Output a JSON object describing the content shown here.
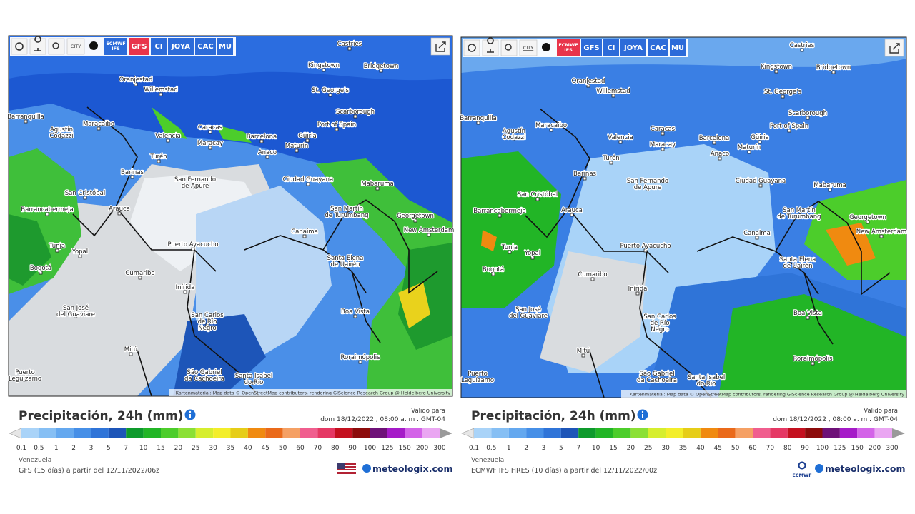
{
  "panels": [
    {
      "toolbar": {
        "city": "CITY",
        "models": [
          [
            "ECMWF",
            "IFS"
          ],
          [
            "GFS"
          ],
          [
            "CI"
          ],
          [
            "JOYA"
          ],
          [
            "CAC"
          ],
          [
            "MU"
          ]
        ],
        "active": 1
      },
      "cities": [
        [
          "Castries"
        ],
        [
          "Kingstown"
        ],
        [
          "Bridgetown"
        ],
        [
          "Oranjestad"
        ],
        [
          "Willemstad"
        ],
        [
          "St. George's"
        ],
        [
          "Scarborough"
        ],
        [
          "Barranquilla"
        ],
        [
          "Maracaibo"
        ],
        [
          "Port of Spain"
        ],
        [
          "Agustín",
          "Codazzi"
        ],
        [
          "Caracas"
        ],
        [
          "Valencia"
        ],
        [
          "Maracay"
        ],
        [
          "Barcelona"
        ],
        [
          "Güiria"
        ],
        [
          "Maturín"
        ],
        [
          "Anaco"
        ],
        [
          "Turén"
        ],
        [
          "Barinas"
        ],
        [
          "Ciudad Guayana"
        ],
        [
          "Mabaruma"
        ],
        [
          "San Fernando",
          "de Apure"
        ],
        [
          "San Cristóbal"
        ],
        [
          "Arauca"
        ],
        [
          "Barrancabermeja"
        ],
        [
          "San Martín",
          "de Turumbang"
        ],
        [
          "Georgetown"
        ],
        [
          "New Amsterdam"
        ],
        [
          "Canaima"
        ],
        [
          "Tunja"
        ],
        [
          "Yopal"
        ],
        [
          "Puerto Ayacucho"
        ],
        [
          "Bogotá"
        ],
        [
          "Santa Elena",
          "de Uairén"
        ],
        [
          "Cumaribo"
        ],
        [
          "Inírida"
        ],
        [
          "Boa Vista"
        ],
        [
          "San José",
          "del Guaviare"
        ],
        [
          "San Carlos",
          "de Río",
          "Negro"
        ],
        [
          "Roraimópolis"
        ],
        [
          "Mitú"
        ],
        [
          "São Gabriel",
          "da Cachoeira"
        ],
        [
          "Santa Isabel",
          "do Rio"
        ],
        [
          "Puerto",
          "Leguízamo"
        ]
      ],
      "attribution": "Kartenmaterial: Map data © OpenStreetMap contributors, rendering GIScience Research Group @ Heidelberg University",
      "title": "Precipitación, 24h (mm)",
      "valid_label": "Valido para",
      "valid_time": "dom 18/12/2022 , 08:00 a. m . GMT-04",
      "legend": {
        "labels": [
          0.1,
          0.5,
          1,
          2,
          3,
          5,
          7,
          10,
          15,
          20,
          25,
          30,
          35,
          40,
          45,
          50,
          60,
          70,
          80,
          90,
          100,
          125,
          150,
          200,
          300
        ],
        "colors": [
          "#a9d3f8",
          "#86bff4",
          "#64a8ef",
          "#468fe7",
          "#2f74d8",
          "#1d55b8",
          "#0e9a2c",
          "#22b526",
          "#4ccd2b",
          "#8be035",
          "#d6ee2e",
          "#f3ee2a",
          "#e6cd18",
          "#f08a10",
          "#ea6a1a",
          "#f5a064",
          "#f05e8e",
          "#e53864",
          "#c4101f",
          "#8c0b0b",
          "#6e1178",
          "#a51ac8",
          "#d363e8",
          "#eaa6f2"
        ]
      },
      "region": "Venezuela",
      "model_run": "GFS (15 días) a partir del 12/11/2022/06z",
      "logo": "meteologix.com"
    },
    {
      "toolbar": {
        "city": "CITY",
        "models": [
          [
            "ECMWF",
            "IFS"
          ],
          [
            "GFS"
          ],
          [
            "CI"
          ],
          [
            "JOYA"
          ],
          [
            "CAC"
          ],
          [
            "MU"
          ]
        ],
        "active": 0
      },
      "cities": [
        [
          "Castries"
        ],
        [
          "Kingstown"
        ],
        [
          "Bridgetown"
        ],
        [
          "Oranjestad"
        ],
        [
          "Willemstad"
        ],
        [
          "St. George's"
        ],
        [
          "Scarborough"
        ],
        [
          "Barranquilla"
        ],
        [
          "Maracaibo"
        ],
        [
          "Port of Spain"
        ],
        [
          "Agustín",
          "Codazzi"
        ],
        [
          "Caracas"
        ],
        [
          "Valencia"
        ],
        [
          "Maracay"
        ],
        [
          "Barcelona"
        ],
        [
          "Güiria"
        ],
        [
          "Maturín"
        ],
        [
          "Anaco"
        ],
        [
          "Turén"
        ],
        [
          "Barinas"
        ],
        [
          "Ciudad Guayana"
        ],
        [
          "Mabaruma"
        ],
        [
          "San Fernando",
          "de Apure"
        ],
        [
          "San Cristóbal"
        ],
        [
          "Arauca"
        ],
        [
          "Barrancabermeja"
        ],
        [
          "San Martín",
          "de Turumbang"
        ],
        [
          "Georgetown"
        ],
        [
          "New Amsterdam"
        ],
        [
          "Canaima"
        ],
        [
          "Tunja"
        ],
        [
          "Yopal"
        ],
        [
          "Puerto Ayacucho"
        ],
        [
          "Bogotá"
        ],
        [
          "Santa Elena",
          "de Uairén"
        ],
        [
          "Cumaribo"
        ],
        [
          "Inírida"
        ],
        [
          "Boa Vista"
        ],
        [
          "San José",
          "del Guaviare"
        ],
        [
          "San Carlos",
          "de Río",
          "Negro"
        ],
        [
          "Roraimópolis"
        ],
        [
          "Mitú"
        ],
        [
          "São Gabriel",
          "da Cachoeira"
        ],
        [
          "Santa Isabel",
          "do Rio"
        ],
        [
          "Puerto",
          "Leguízamo"
        ]
      ],
      "attribution": "Kartenmaterial: Map data © OpenStreetMap contributors, rendering GIScience Research Group @ Heidelberg University",
      "title": "Precipitación, 24h (mm)",
      "valid_label": "Valido para",
      "valid_time": "dom 18/12/2022 , 08:00 a. m . GMT-04",
      "legend": {
        "labels": [
          0.1,
          0.5,
          1,
          2,
          3,
          5,
          7,
          10,
          15,
          20,
          25,
          30,
          35,
          40,
          45,
          50,
          60,
          70,
          80,
          90,
          100,
          125,
          150,
          200,
          300
        ],
        "colors": [
          "#a9d3f8",
          "#86bff4",
          "#64a8ef",
          "#468fe7",
          "#2f74d8",
          "#1d55b8",
          "#0e9a2c",
          "#22b526",
          "#4ccd2b",
          "#8be035",
          "#d6ee2e",
          "#f3ee2a",
          "#e6cd18",
          "#f08a10",
          "#ea6a1a",
          "#f5a064",
          "#f05e8e",
          "#e53864",
          "#c4101f",
          "#8c0b0b",
          "#6e1178",
          "#a51ac8",
          "#d363e8",
          "#eaa6f2"
        ]
      },
      "region": "Venezuela",
      "model_run": "ECMWF IFS HRES (10 días) a partir del 12/11/2022/00z",
      "logo": "meteologix.com",
      "logo_sub": "ECMWF"
    }
  ]
}
